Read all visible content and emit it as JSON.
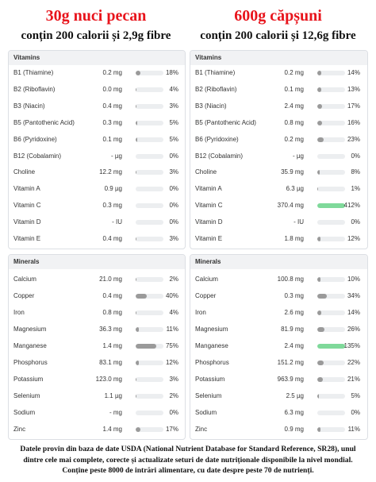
{
  "columns": [
    {
      "title": "30g nuci pecan",
      "subtitle": "conțin 200 calorii și 2,9g fibre",
      "sections": [
        {
          "heading": "Vitamins",
          "rows": [
            {
              "name": "B1 (Thiamine)",
              "amount": "0.2 mg",
              "pct": {
                "value": 18,
                "label": "18%"
              }
            },
            {
              "name": "B2 (Riboflavin)",
              "amount": "0.0 mg",
              "pct": {
                "value": 4,
                "label": "4%"
              }
            },
            {
              "name": "B3 (Niacin)",
              "amount": "0.4 mg",
              "pct": {
                "value": 3,
                "label": "3%"
              }
            },
            {
              "name": "B5 (Pantothenic Acid)",
              "amount": "0.3 mg",
              "pct": {
                "value": 5,
                "label": "5%"
              }
            },
            {
              "name": "B6 (Pyridoxine)",
              "amount": "0.1 mg",
              "pct": {
                "value": 5,
                "label": "5%"
              }
            },
            {
              "name": "B12 (Cobalamin)",
              "amount": "- µg",
              "pct": {
                "value": 0,
                "label": "0%"
              }
            },
            {
              "name": "Choline",
              "amount": "12.2 mg",
              "pct": {
                "value": 3,
                "label": "3%"
              }
            },
            {
              "name": "Vitamin A",
              "amount": "0.9 µg",
              "pct": {
                "value": 0,
                "label": "0%"
              }
            },
            {
              "name": "Vitamin C",
              "amount": "0.3 mg",
              "pct": {
                "value": 0,
                "label": "0%"
              }
            },
            {
              "name": "Vitamin D",
              "amount": "- IU",
              "pct": {
                "value": 0,
                "label": "0%"
              }
            },
            {
              "name": "Vitamin E",
              "amount": "0.4 mg",
              "pct": {
                "value": 3,
                "label": "3%"
              }
            }
          ]
        },
        {
          "heading": "Minerals",
          "rows": [
            {
              "name": "Calcium",
              "amount": "21.0 mg",
              "pct": {
                "value": 2,
                "label": "2%"
              }
            },
            {
              "name": "Copper",
              "amount": "0.4 mg",
              "pct": {
                "value": 40,
                "label": "40%"
              }
            },
            {
              "name": "Iron",
              "amount": "0.8 mg",
              "pct": {
                "value": 4,
                "label": "4%"
              }
            },
            {
              "name": "Magnesium",
              "amount": "36.3 mg",
              "pct": {
                "value": 11,
                "label": "11%"
              }
            },
            {
              "name": "Manganese",
              "amount": "1.4 mg",
              "pct": {
                "value": 75,
                "label": "75%"
              }
            },
            {
              "name": "Phosphorus",
              "amount": "83.1 mg",
              "pct": {
                "value": 12,
                "label": "12%"
              }
            },
            {
              "name": "Potassium",
              "amount": "123.0 mg",
              "pct": {
                "value": 3,
                "label": "3%"
              }
            },
            {
              "name": "Selenium",
              "amount": "1.1 µg",
              "pct": {
                "value": 2,
                "label": "2%"
              }
            },
            {
              "name": "Sodium",
              "amount": "- mg",
              "pct": {
                "value": 0,
                "label": "0%"
              }
            },
            {
              "name": "Zinc",
              "amount": "1.4 mg",
              "pct": {
                "value": 17,
                "label": "17%"
              }
            }
          ]
        }
      ]
    },
    {
      "title": "600g căpșuni",
      "subtitle": "conțin 200 calorii și 12,6g fibre",
      "sections": [
        {
          "heading": "Vitamins",
          "rows": [
            {
              "name": "B1 (Thiamine)",
              "amount": "0.2 mg",
              "pct": {
                "value": 14,
                "label": "14%"
              }
            },
            {
              "name": "B2 (Riboflavin)",
              "amount": "0.1 mg",
              "pct": {
                "value": 13,
                "label": "13%"
              }
            },
            {
              "name": "B3 (Niacin)",
              "amount": "2.4 mg",
              "pct": {
                "value": 17,
                "label": "17%"
              }
            },
            {
              "name": "B5 (Pantothenic Acid)",
              "amount": "0.8 mg",
              "pct": {
                "value": 16,
                "label": "16%"
              }
            },
            {
              "name": "B6 (Pyridoxine)",
              "amount": "0.2 mg",
              "pct": {
                "value": 23,
                "label": "23%"
              }
            },
            {
              "name": "B12 (Cobalamin)",
              "amount": "- µg",
              "pct": {
                "value": 0,
                "label": "0%"
              }
            },
            {
              "name": "Choline",
              "amount": "35.9 mg",
              "pct": {
                "value": 8,
                "label": "8%"
              }
            },
            {
              "name": "Vitamin A",
              "amount": "6.3 µg",
              "pct": {
                "value": 1,
                "label": "1%"
              }
            },
            {
              "name": "Vitamin C",
              "amount": "370.4 mg",
              "pct": {
                "value": 412,
                "label": "412%"
              }
            },
            {
              "name": "Vitamin D",
              "amount": "- IU",
              "pct": {
                "value": 0,
                "label": "0%"
              }
            },
            {
              "name": "Vitamin E",
              "amount": "1.8 mg",
              "pct": {
                "value": 12,
                "label": "12%"
              }
            }
          ]
        },
        {
          "heading": "Minerals",
          "rows": [
            {
              "name": "Calcium",
              "amount": "100.8 mg",
              "pct": {
                "value": 10,
                "label": "10%"
              }
            },
            {
              "name": "Copper",
              "amount": "0.3 mg",
              "pct": {
                "value": 34,
                "label": "34%"
              }
            },
            {
              "name": "Iron",
              "amount": "2.6 mg",
              "pct": {
                "value": 14,
                "label": "14%"
              }
            },
            {
              "name": "Magnesium",
              "amount": "81.9 mg",
              "pct": {
                "value": 26,
                "label": "26%"
              }
            },
            {
              "name": "Manganese",
              "amount": "2.4 mg",
              "pct": {
                "value": 135,
                "label": "135%"
              }
            },
            {
              "name": "Phosphorus",
              "amount": "151.2 mg",
              "pct": {
                "value": 22,
                "label": "22%"
              }
            },
            {
              "name": "Potassium",
              "amount": "963.9 mg",
              "pct": {
                "value": 21,
                "label": "21%"
              }
            },
            {
              "name": "Selenium",
              "amount": "2.5 µg",
              "pct": {
                "value": 5,
                "label": "5%"
              }
            },
            {
              "name": "Sodium",
              "amount": "6.3 mg",
              "pct": {
                "value": 0,
                "label": "0%"
              }
            },
            {
              "name": "Zinc",
              "amount": "0.9 mg",
              "pct": {
                "value": 11,
                "label": "11%"
              }
            }
          ]
        }
      ]
    }
  ],
  "footer": [
    "Datele provin din baza de date USDA (National Nutrient Database for Standard Reference, SR28), unul",
    "dintre cele mai complete, corecte și actualizate seturi de date nutriționale disponibile la nivel mondial.",
    "Conține peste 8000 de intrări alimentare, cu date despre peste 70 de nutrienți."
  ]
}
